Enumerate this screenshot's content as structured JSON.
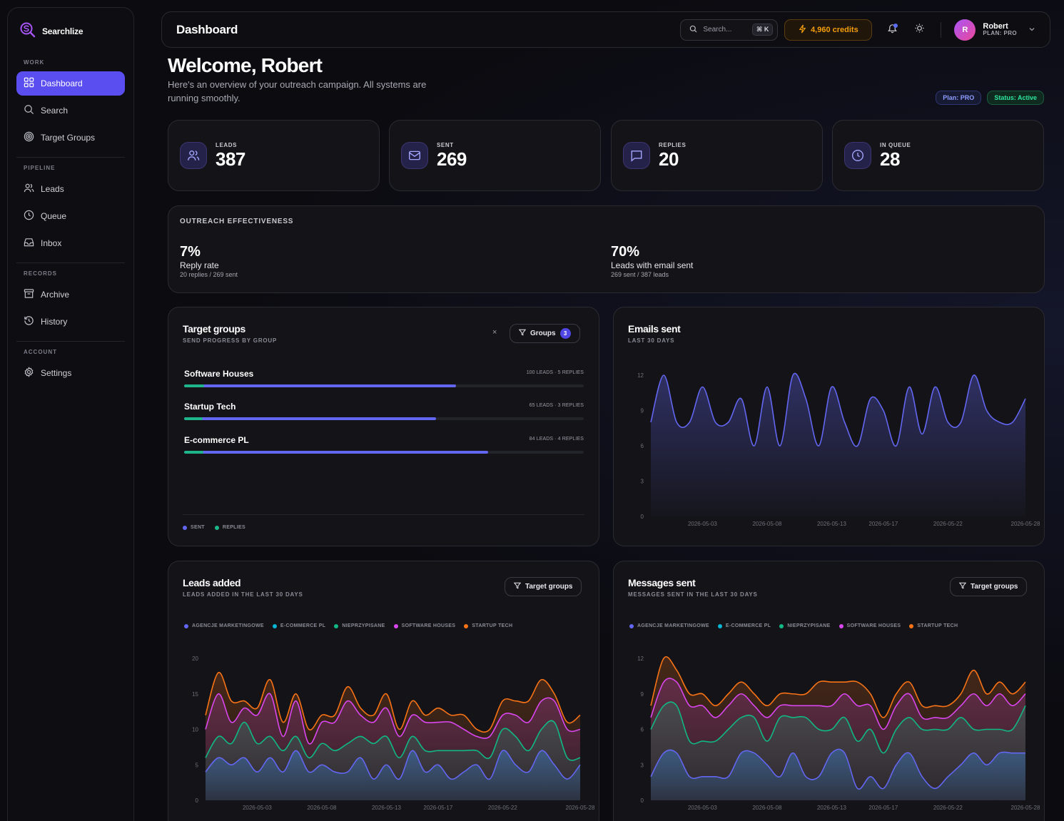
{
  "brand": {
    "name": "Searchlize"
  },
  "sidebar": {
    "sections": [
      {
        "title": "WORK",
        "items": [
          {
            "label": "Dashboard",
            "icon": "grid-icon",
            "active": true
          },
          {
            "label": "Search",
            "icon": "search-icon"
          },
          {
            "label": "Target Groups",
            "icon": "target-icon"
          }
        ]
      },
      {
        "title": "PIPELINE",
        "items": [
          {
            "label": "Leads",
            "icon": "users-icon"
          },
          {
            "label": "Queue",
            "icon": "clock-icon"
          },
          {
            "label": "Inbox",
            "icon": "inbox-icon"
          }
        ]
      },
      {
        "title": "RECORDS",
        "items": [
          {
            "label": "Archive",
            "icon": "archive-icon"
          },
          {
            "label": "History",
            "icon": "history-icon"
          }
        ]
      },
      {
        "title": "ACCOUNT",
        "items": [
          {
            "label": "Settings",
            "icon": "gear-icon"
          }
        ]
      }
    ]
  },
  "topbar": {
    "title": "Dashboard",
    "search_placeholder": "Search...",
    "shortcut": "⌘ K",
    "credits": "4,960 credits",
    "user": {
      "initial": "R",
      "name": "Robert",
      "plan": "PLAN: PRO"
    }
  },
  "welcome": {
    "title": "Welcome, Robert",
    "subtitle": "Here's an overview of your outreach campaign. All systems are running smoothly.",
    "badge_plan": "Plan: PRO",
    "badge_status": "Status: Active"
  },
  "stats": [
    {
      "label": "LEADS",
      "value": "387",
      "icon": "users-icon"
    },
    {
      "label": "SENT",
      "value": "269",
      "icon": "mail-icon"
    },
    {
      "label": "REPLIES",
      "value": "20",
      "icon": "message-icon"
    },
    {
      "label": "IN QUEUE",
      "value": "28",
      "icon": "clock-icon"
    }
  ],
  "effectiveness": {
    "title": "OUTREACH EFFECTIVENESS",
    "reply": {
      "pct": "7%",
      "label": "Reply rate",
      "sub": "20 replies / 269 sent"
    },
    "sent": {
      "pct": "70%",
      "label": "Leads with email sent",
      "sub": "269 sent / 387 leads"
    }
  },
  "target_groups": {
    "title": "Target groups",
    "subtitle": "SEND PROGRESS BY GROUP",
    "clear": "×",
    "filter_label": "Groups",
    "filter_count": "3",
    "groups": [
      {
        "name": "Software Houses",
        "meta": "100 LEADS · 5 REPLIES",
        "sent": 0.68,
        "replies": 0.05
      },
      {
        "name": "Startup Tech",
        "meta": "65 LEADS · 3 REPLIES",
        "sent": 0.63,
        "replies": 0.046
      },
      {
        "name": "E-commerce PL",
        "meta": "84 LEADS · 4 REPLIES",
        "sent": 0.76,
        "replies": 0.048
      }
    ],
    "legend": [
      {
        "label": "SENT",
        "color": "#6366f1"
      },
      {
        "label": "REPLIES",
        "color": "#1fb58a"
      }
    ]
  },
  "emails_sent": {
    "title": "Emails sent",
    "subtitle": "LAST 30 DAYS"
  },
  "leads_added": {
    "title": "Leads added",
    "subtitle": "LEADS ADDED IN THE LAST 30 DAYS",
    "filter_label": "Target groups"
  },
  "messages_sent": {
    "title": "Messages sent",
    "subtitle": "MESSAGES SENT IN THE LAST 30 DAYS",
    "filter_label": "Target groups"
  },
  "series_legend": [
    {
      "label": "AGENCJE MARKETINGOWE",
      "color": "#6366f1"
    },
    {
      "label": "E-COMMERCE PL",
      "color": "#06b6d4"
    },
    {
      "label": "NIEPRZYPISANE",
      "color": "#10b981"
    },
    {
      "label": "SOFTWARE HOUSES",
      "color": "#d946ef"
    },
    {
      "label": "STARTUP TECH",
      "color": "#f97316"
    }
  ],
  "chart_data": [
    {
      "type": "area",
      "title": "Emails sent",
      "x": [
        "2026-04-29",
        "2026-04-30",
        "2026-05-01",
        "2026-05-02",
        "2026-05-03",
        "2026-05-04",
        "2026-05-05",
        "2026-05-06",
        "2026-05-07",
        "2026-05-08",
        "2026-05-09",
        "2026-05-10",
        "2026-05-11",
        "2026-05-12",
        "2026-05-13",
        "2026-05-14",
        "2026-05-15",
        "2026-05-16",
        "2026-05-17",
        "2026-05-18",
        "2026-05-19",
        "2026-05-20",
        "2026-05-21",
        "2026-05-22",
        "2026-05-23",
        "2026-05-24",
        "2026-05-25",
        "2026-05-26",
        "2026-05-27",
        "2026-05-28"
      ],
      "x_ticks": [
        "2026-05-03",
        "2026-05-08",
        "2026-05-13",
        "2026-05-17",
        "2026-05-22",
        "2026-05-28"
      ],
      "series": [
        {
          "values": [
            8,
            12,
            8,
            8,
            11,
            8,
            8,
            10,
            6,
            11,
            6,
            12,
            10,
            6,
            11,
            8,
            6,
            10,
            9,
            6,
            11,
            7,
            11,
            8,
            8,
            12,
            9,
            8,
            8,
            10
          ]
        }
      ],
      "ylim": [
        0,
        12
      ],
      "y_ticks": [
        0,
        3,
        6,
        9,
        12
      ],
      "color": "#6366f1"
    },
    {
      "type": "area",
      "title": "Leads added",
      "stacked": true,
      "x": [
        "2026-04-29",
        "2026-04-30",
        "2026-05-01",
        "2026-05-02",
        "2026-05-03",
        "2026-05-04",
        "2026-05-05",
        "2026-05-06",
        "2026-05-07",
        "2026-05-08",
        "2026-05-09",
        "2026-05-10",
        "2026-05-11",
        "2026-05-12",
        "2026-05-13",
        "2026-05-14",
        "2026-05-15",
        "2026-05-16",
        "2026-05-17",
        "2026-05-18",
        "2026-05-19",
        "2026-05-20",
        "2026-05-21",
        "2026-05-22",
        "2026-05-23",
        "2026-05-24",
        "2026-05-25",
        "2026-05-26",
        "2026-05-27",
        "2026-05-28"
      ],
      "x_ticks": [
        "2026-05-03",
        "2026-05-08",
        "2026-05-13",
        "2026-05-17",
        "2026-05-22",
        "2026-05-28"
      ],
      "ylim": [
        0,
        20
      ],
      "y_ticks": [
        0,
        5,
        10,
        15,
        20
      ],
      "series": [
        {
          "name": "AGENCJE MARKETINGOWE",
          "values": [
            4,
            6,
            5,
            6,
            4,
            6,
            4,
            7,
            4,
            5,
            4,
            4,
            6,
            3,
            5,
            3,
            7,
            4,
            5,
            3,
            4,
            5,
            3,
            7,
            5,
            4,
            7,
            5,
            3,
            5
          ]
        },
        {
          "name": "E-COMMERCE PL",
          "values": [
            0,
            0,
            0,
            0,
            0,
            0,
            0,
            0,
            0,
            0,
            0,
            0,
            0,
            0,
            0,
            0,
            0,
            0,
            0,
            0,
            0,
            0,
            0,
            0,
            0,
            0,
            0,
            0,
            0,
            0
          ]
        },
        {
          "name": "NIEPRZYPISANE",
          "values": [
            2,
            3,
            3,
            5,
            4,
            3,
            3,
            2,
            2,
            3,
            3,
            4,
            3,
            5,
            4,
            3,
            2,
            3,
            2,
            4,
            3,
            2,
            3,
            3,
            4,
            3,
            3,
            6,
            3,
            1
          ]
        },
        {
          "name": "SOFTWARE HOUSES",
          "values": [
            4,
            6,
            3,
            2,
            4,
            6,
            2,
            5,
            2,
            3,
            4,
            6,
            3,
            3,
            4,
            3,
            3,
            4,
            4,
            4,
            3,
            2,
            3,
            2,
            3,
            4,
            4,
            3,
            4,
            4
          ]
        },
        {
          "name": "STARTUP TECH",
          "values": [
            2,
            3,
            3,
            1,
            1,
            2,
            2,
            1,
            2,
            1,
            1,
            2,
            1,
            1,
            2,
            1,
            2,
            1,
            2,
            1,
            2,
            1,
            1,
            2,
            2,
            3,
            3,
            1,
            1,
            2
          ]
        }
      ]
    },
    {
      "type": "area",
      "title": "Messages sent",
      "stacked": true,
      "x": [
        "2026-04-29",
        "2026-04-30",
        "2026-05-01",
        "2026-05-02",
        "2026-05-03",
        "2026-05-04",
        "2026-05-05",
        "2026-05-06",
        "2026-05-07",
        "2026-05-08",
        "2026-05-09",
        "2026-05-10",
        "2026-05-11",
        "2026-05-12",
        "2026-05-13",
        "2026-05-14",
        "2026-05-15",
        "2026-05-16",
        "2026-05-17",
        "2026-05-18",
        "2026-05-19",
        "2026-05-20",
        "2026-05-21",
        "2026-05-22",
        "2026-05-23",
        "2026-05-24",
        "2026-05-25",
        "2026-05-26",
        "2026-05-27",
        "2026-05-28"
      ],
      "x_ticks": [
        "2026-05-03",
        "2026-05-08",
        "2026-05-13",
        "2026-05-17",
        "2026-05-22",
        "2026-05-28"
      ],
      "ylim": [
        0,
        12
      ],
      "y_ticks": [
        0,
        3,
        6,
        9,
        12
      ],
      "series": [
        {
          "name": "AGENCJE MARKETINGOWE",
          "values": [
            2,
            4,
            4,
            2,
            2,
            2,
            2,
            4,
            4,
            3,
            2,
            4,
            2,
            2,
            4,
            4,
            1,
            2,
            1,
            3,
            4,
            2,
            1,
            2,
            3,
            4,
            3,
            4,
            4,
            4
          ]
        },
        {
          "name": "E-COMMERCE PL",
          "values": [
            0,
            0,
            0,
            0,
            0,
            0,
            0,
            0,
            0,
            0,
            0,
            0,
            0,
            0,
            0,
            0,
            0,
            0,
            0,
            0,
            0,
            0,
            0,
            0,
            0,
            0,
            0,
            0,
            0,
            0
          ]
        },
        {
          "name": "NIEPRZYPISANE",
          "values": [
            4,
            4,
            4,
            3,
            3,
            3,
            4,
            3,
            3,
            2,
            5,
            3,
            5,
            4,
            2,
            3,
            4,
            4,
            3,
            3,
            3,
            4,
            5,
            4,
            4,
            2,
            3,
            2,
            2,
            4
          ]
        },
        {
          "name": "SOFTWARE HOUSES",
          "values": [
            1,
            2,
            2,
            3,
            3,
            2,
            2,
            2,
            1,
            2,
            1,
            1,
            1,
            2,
            2,
            2,
            3,
            2,
            2,
            2,
            2,
            1,
            1,
            1,
            1,
            3,
            2,
            3,
            2,
            1
          ]
        },
        {
          "name": "STARTUP TECH",
          "values": [
            1,
            2,
            1,
            1,
            1,
            1,
            1,
            1,
            1,
            1,
            1,
            1,
            1,
            2,
            2,
            1,
            2,
            1,
            1,
            1,
            1,
            1,
            1,
            1,
            1,
            2,
            1,
            1,
            1,
            1
          ]
        }
      ]
    }
  ]
}
